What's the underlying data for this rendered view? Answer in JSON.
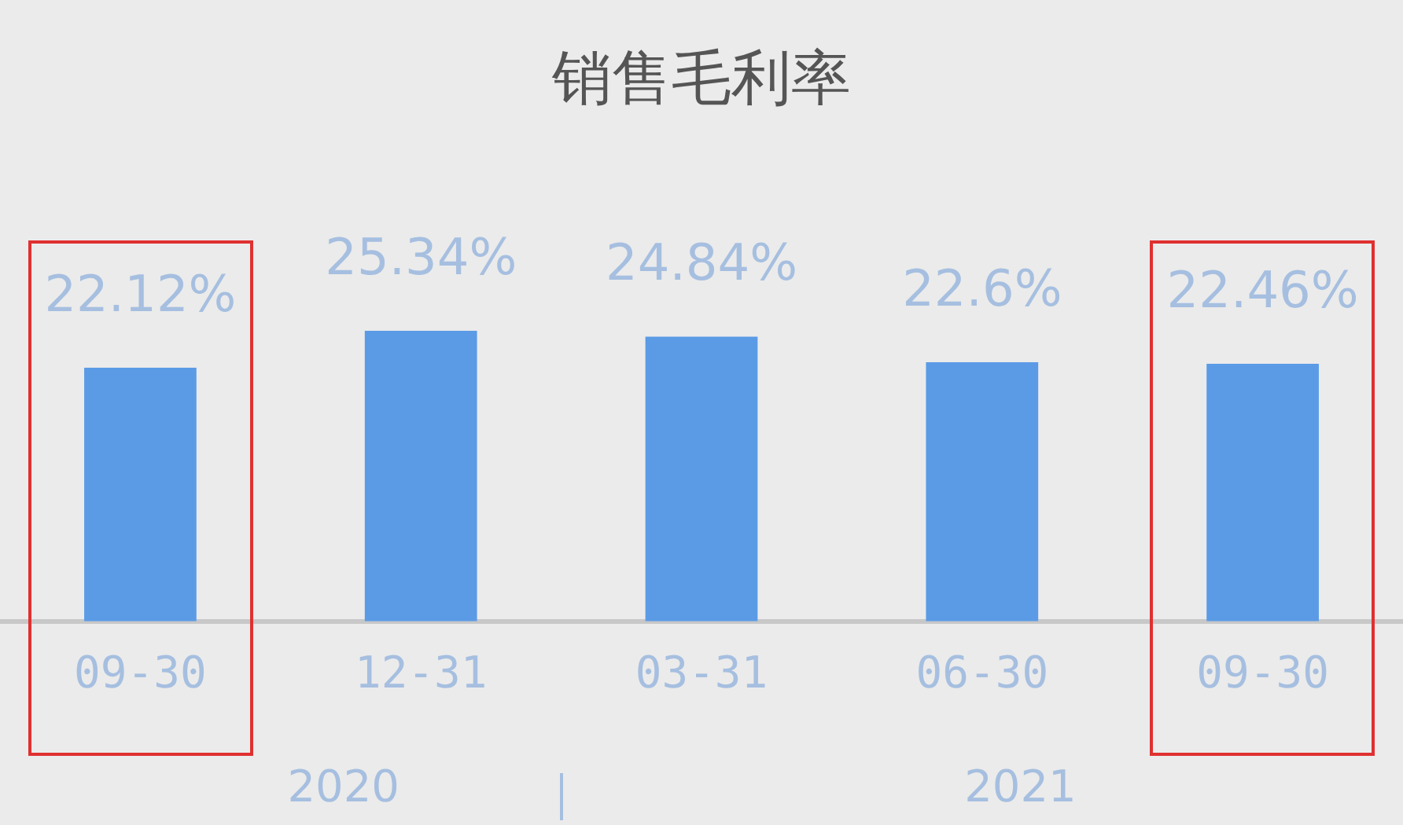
{
  "chart_data": {
    "type": "bar",
    "title": "销售毛利率",
    "categories": [
      "09-30",
      "12-31",
      "03-31",
      "06-30",
      "09-30"
    ],
    "values": [
      22.12,
      25.34,
      24.84,
      22.6,
      22.46
    ],
    "value_labels": [
      "22.12%",
      "25.34%",
      "24.84%",
      "22.6%",
      "22.46%"
    ],
    "color": "#5b9be6",
    "tick_labels": "x",
    "annotations": [
      "2020",
      "2021"
    ]
  }
}
